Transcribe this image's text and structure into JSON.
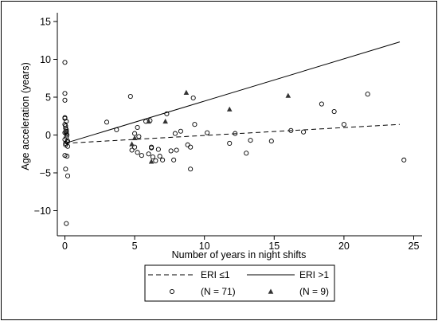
{
  "chart_data": {
    "type": "scatter",
    "xlabel": "Number of years in night shifts",
    "ylabel": "Age acceleration (years)",
    "xlim": [
      0,
      25
    ],
    "ylim": [
      -12.5,
      15
    ],
    "xticks": [
      0,
      5,
      10,
      15,
      20,
      25
    ],
    "yticks": [
      -10,
      -5,
      0,
      5,
      10,
      15
    ],
    "grid": false,
    "legend_placement": "bottom",
    "legend": [
      {
        "label": "ERI ≤1",
        "style": "dashed-line"
      },
      {
        "label": "ERI >1",
        "style": "solid-line"
      },
      {
        "label": "(N = 71)",
        "style": "open-circle"
      },
      {
        "label": "(N = 9)",
        "style": "filled-triangle"
      }
    ],
    "fit_lines": [
      {
        "group": "ERI ≤1",
        "style": "dashed",
        "x": [
          0,
          24
        ],
        "y": [
          -1.1,
          1.4
        ]
      },
      {
        "group": "ERI >1",
        "style": "solid",
        "x": [
          0,
          24
        ],
        "y": [
          -1.1,
          12.3
        ]
      }
    ],
    "series": [
      {
        "name": "(N = 71)",
        "marker": "open-circle",
        "x": [
          0.0,
          0.0,
          0.0,
          0.0,
          0.0,
          0.05,
          0.05,
          0.1,
          0.1,
          0.0,
          0.1,
          0.15,
          0.1,
          0.0,
          0.15,
          0.05,
          0.05,
          0.2,
          0.1,
          0.0,
          0.1,
          0.2,
          0.15,
          0.05,
          0.2,
          0.1,
          0.0,
          3.0,
          3.7,
          4.7,
          5.0,
          5.2,
          5.3,
          5.0,
          4.8,
          5.2,
          5.5,
          6.1,
          6.2,
          6.0,
          6.3,
          6.5,
          6.8,
          7.0,
          7.3,
          7.6,
          7.8,
          8.0,
          8.3,
          8.8,
          9.0,
          9.0,
          9.2,
          9.3,
          10.2,
          11.8,
          12.2,
          13.0,
          13.3,
          14.8,
          16.2,
          17.1,
          18.4,
          19.3,
          20.0,
          21.7,
          24.3,
          5.8,
          7.9,
          6.2,
          6.7
        ],
        "y": [
          9.6,
          5.5,
          4.6,
          2.2,
          1.4,
          1.2,
          0.9,
          0.7,
          0.5,
          0.3,
          0.2,
          0.0,
          -0.3,
          -0.6,
          -0.9,
          -1.1,
          -1.3,
          -1.5,
          1.8,
          2.3,
          0.4,
          -0.8,
          -2.8,
          -4.5,
          -5.4,
          -11.7,
          -2.7,
          1.7,
          0.7,
          5.1,
          0.2,
          1.0,
          -0.2,
          -1.6,
          -2.0,
          -2.3,
          -2.7,
          1.9,
          -1.6,
          -2.5,
          -2.9,
          -3.4,
          -2.8,
          -3.3,
          2.8,
          -2.1,
          -3.3,
          -2.0,
          0.5,
          -1.3,
          -1.6,
          -4.5,
          4.9,
          1.4,
          0.3,
          -1.1,
          0.2,
          -2.4,
          -0.7,
          -0.8,
          0.6,
          0.4,
          4.1,
          3.1,
          1.4,
          5.4,
          -3.3,
          1.8,
          0.2,
          -1.7,
          -1.9
        ]
      },
      {
        "name": "(N = 9)",
        "marker": "filled-triangle",
        "x": [
          4.8,
          5.0,
          6.2,
          7.2,
          8.7,
          11.8,
          16.0,
          0.0,
          6.0
        ],
        "y": [
          -1.2,
          -0.4,
          -3.5,
          1.8,
          5.6,
          3.4,
          5.2,
          0.6,
          1.8
        ]
      }
    ]
  }
}
